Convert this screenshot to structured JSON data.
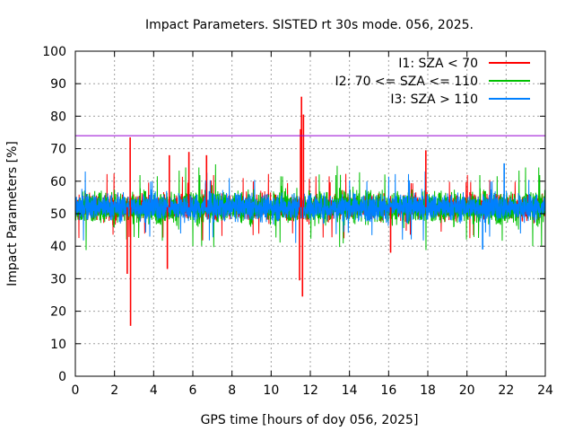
{
  "chart_data": {
    "type": "line",
    "title": "Impact Parameters. SISTED rt 30s mode. 056, 2025.",
    "xlabel": "GPS time [hours of doy 056, 2025]",
    "ylabel": "Impact Parameters [%]",
    "xlim": [
      0,
      24
    ],
    "ylim": [
      0,
      100
    ],
    "xticks": [
      0,
      2,
      4,
      6,
      8,
      10,
      12,
      14,
      16,
      18,
      20,
      22,
      24
    ],
    "yticks": [
      0,
      10,
      20,
      30,
      40,
      50,
      60,
      70,
      80,
      90,
      100
    ],
    "grid": true,
    "legend_position": "top-right",
    "reference_line": {
      "y": 74,
      "color": "#9400d3"
    },
    "series": [
      {
        "name": "I1: SZA < 70",
        "color": "#ff0000",
        "noise": {
          "mean": 52,
          "band": [
            45,
            59
          ]
        },
        "spikes": [
          {
            "x": 2.65,
            "y": 31.5
          },
          {
            "x": 2.8,
            "y": 73.5
          },
          {
            "x": 2.82,
            "y": 15.5
          },
          {
            "x": 4.7,
            "y": 33
          },
          {
            "x": 4.8,
            "y": 68
          },
          {
            "x": 5.8,
            "y": 69
          },
          {
            "x": 6.7,
            "y": 68
          },
          {
            "x": 11.45,
            "y": 29.5
          },
          {
            "x": 11.5,
            "y": 76
          },
          {
            "x": 11.55,
            "y": 86
          },
          {
            "x": 11.6,
            "y": 24.5
          },
          {
            "x": 11.65,
            "y": 80.5
          },
          {
            "x": 17.9,
            "y": 69.5
          },
          {
            "x": 16.1,
            "y": 38
          }
        ]
      },
      {
        "name": "I2: 70 <= SZA <= 110",
        "color": "#00c000",
        "noise": {
          "mean": 52,
          "band": [
            43,
            61
          ]
        },
        "spikes": []
      },
      {
        "name": "I3: SZA > 110",
        "color": "#0080ff",
        "noise": {
          "mean": 52,
          "band": [
            45,
            60
          ]
        },
        "spikes": [
          {
            "x": 21.9,
            "y": 65.5
          },
          {
            "x": 20.8,
            "y": 39
          }
        ]
      }
    ]
  }
}
